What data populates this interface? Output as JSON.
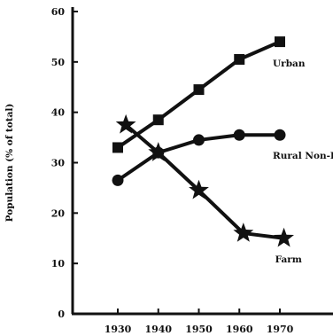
{
  "chart_data": {
    "type": "line",
    "title": "",
    "xlabel": "",
    "ylabel": "Population (% of total)",
    "xlim": [
      1930,
      1970
    ],
    "ylim": [
      0,
      60
    ],
    "x_ticks": [
      1930,
      1940,
      1950,
      1960,
      1970
    ],
    "y_ticks": [
      0,
      10,
      20,
      30,
      40,
      50,
      60
    ],
    "grid": false,
    "legend": "none (series labeled directly on the lines)",
    "series": [
      {
        "name": "Urban",
        "marker": "square",
        "color": "#111111",
        "x": [
          1930,
          1940,
          1950,
          1960,
          1970
        ],
        "values": [
          33,
          38.5,
          44.5,
          50.5,
          54
        ]
      },
      {
        "name": "Rural Non-Farm",
        "marker": "circle",
        "color": "#111111",
        "x": [
          1930,
          1940,
          1950,
          1960,
          1970
        ],
        "values": [
          26.5,
          32,
          34.5,
          35.5,
          35.5
        ]
      },
      {
        "name": "Farm",
        "marker": "star",
        "color": "#111111",
        "x": [
          1932,
          1940,
          1950,
          1961,
          1971
        ],
        "values": [
          37.5,
          32,
          24.5,
          16,
          15
        ]
      }
    ]
  }
}
